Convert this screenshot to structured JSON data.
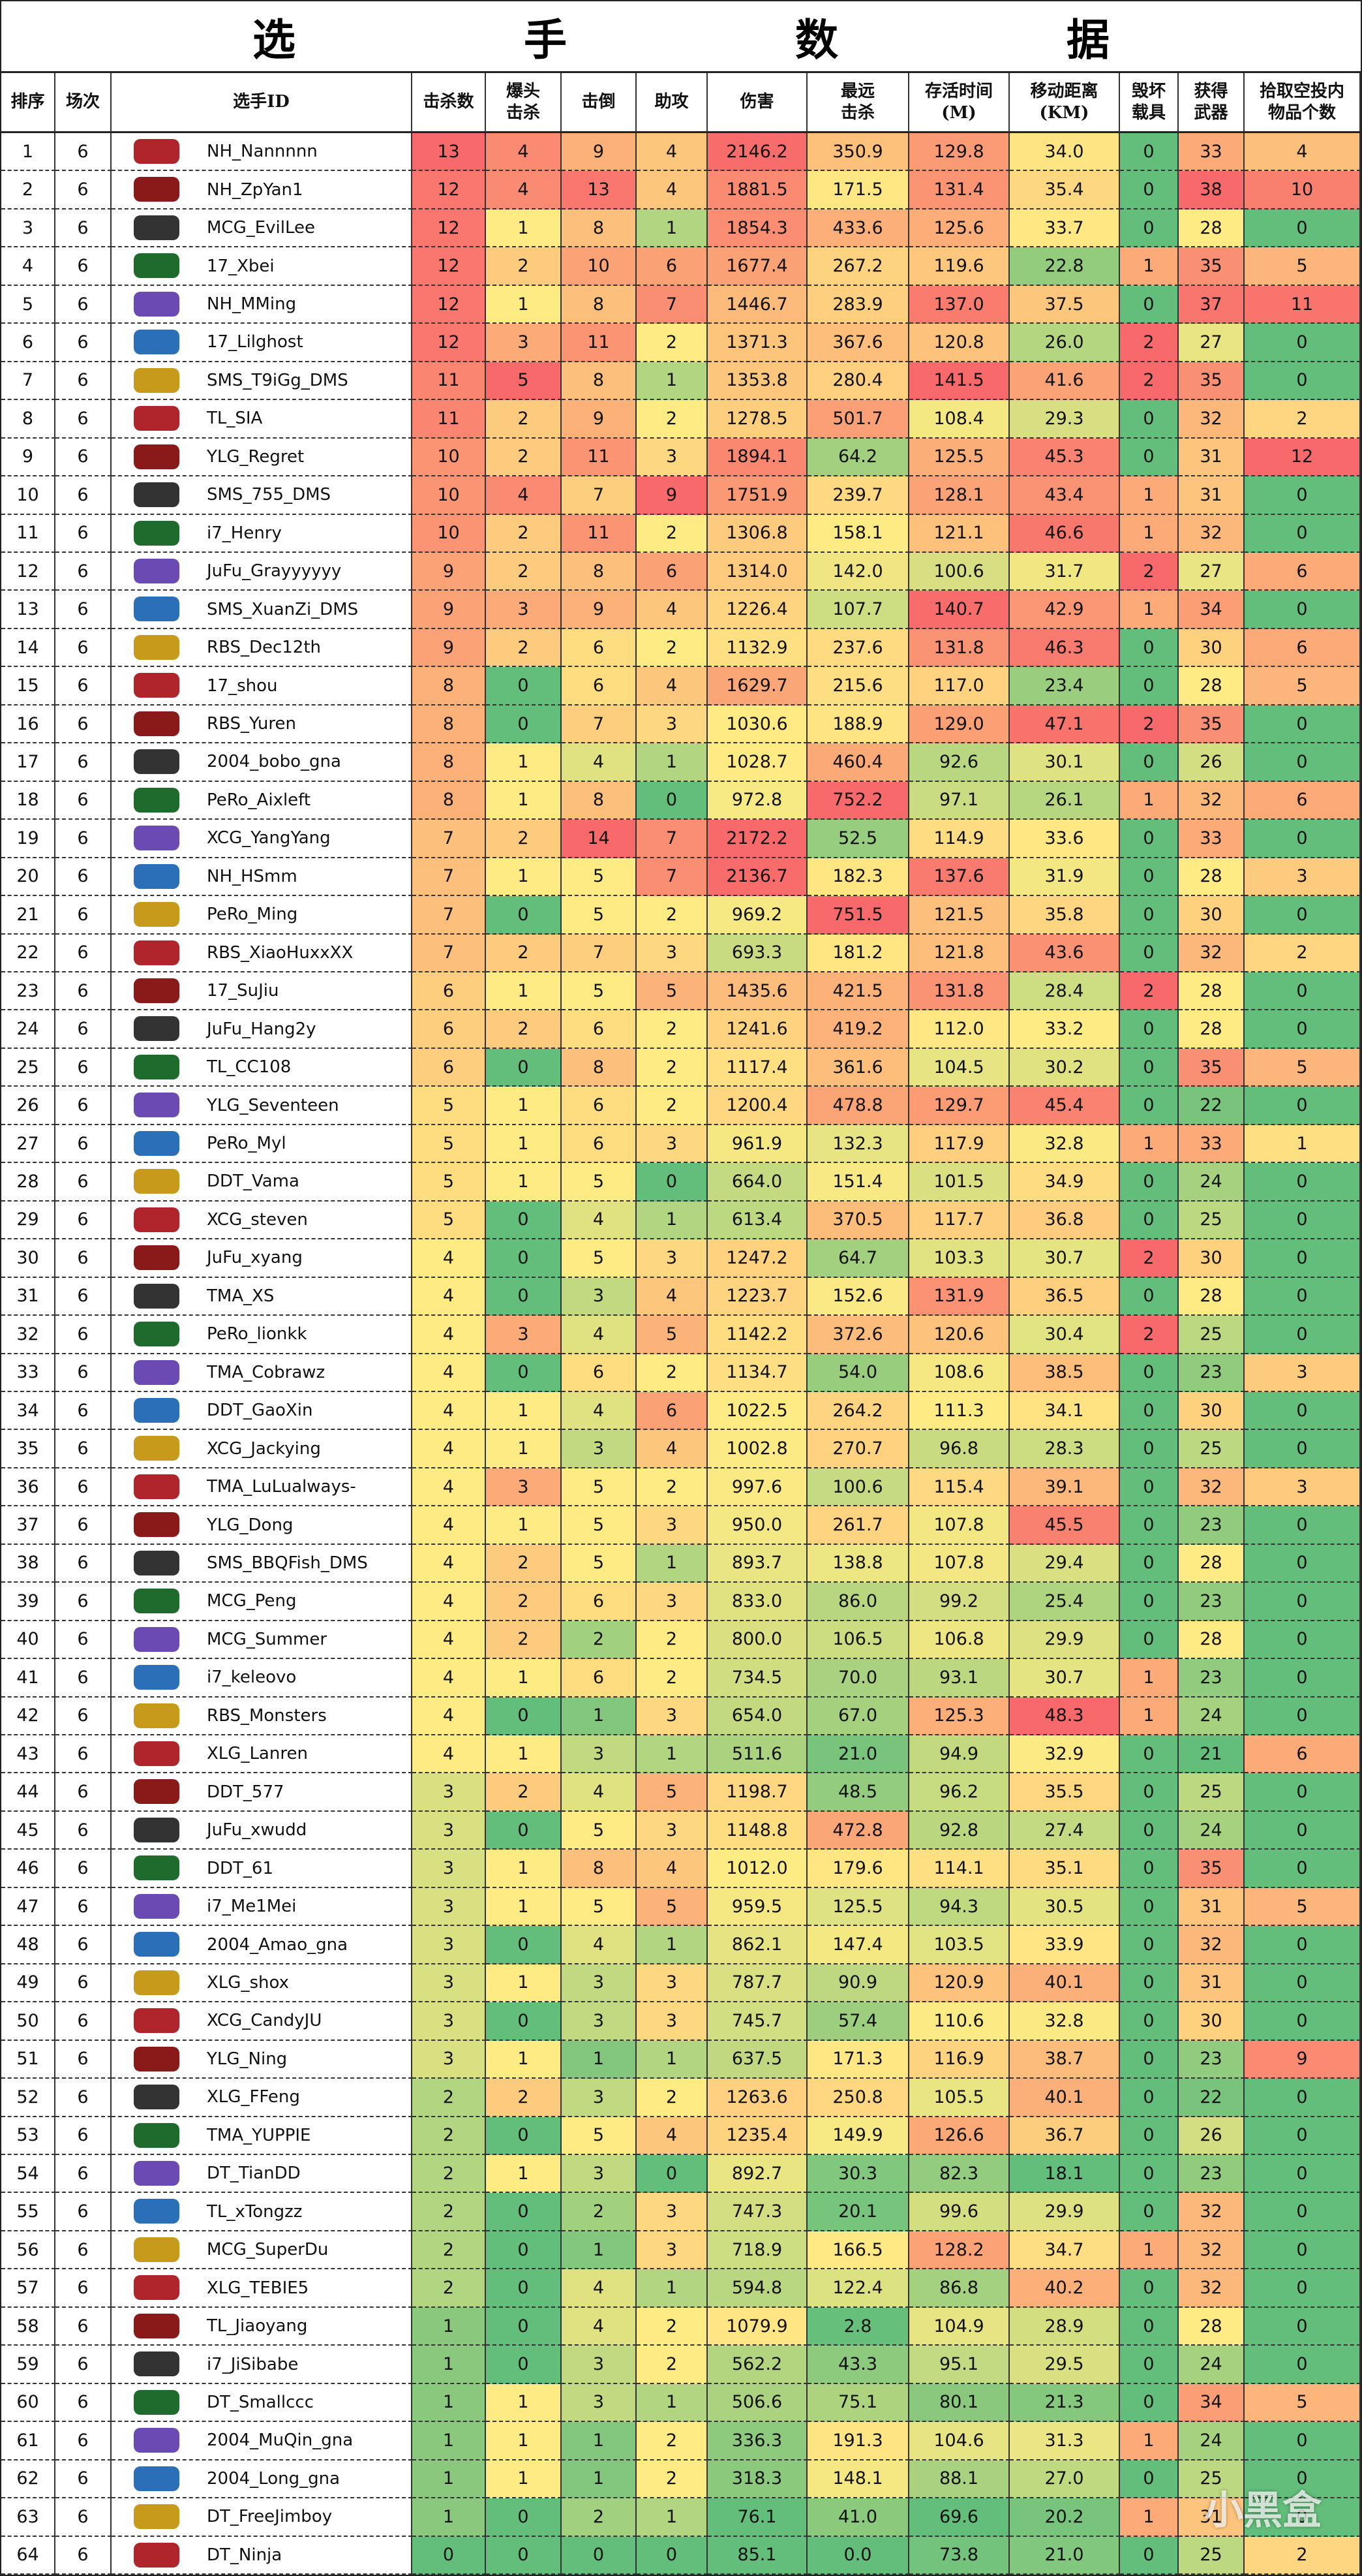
{
  "title": "选手数据",
  "watermark": "小黑盒",
  "table": {
    "headers": [
      [
        "排序"
      ],
      [
        "场次"
      ],
      [
        "选手ID"
      ],
      [
        "击杀数"
      ],
      [
        "爆头",
        "击杀"
      ],
      [
        "击倒"
      ],
      [
        "助攻"
      ],
      [
        "伤害"
      ],
      [
        "最远",
        "击杀"
      ],
      [
        "存活时间",
        "(M)"
      ],
      [
        "移动距离",
        "(KM)"
      ],
      [
        "毁坏",
        "载具"
      ],
      [
        "获得",
        "武器"
      ],
      [
        "拾取空投内",
        "物品个数"
      ]
    ],
    "rows": [
      [
        1,
        6,
        "NH_Nannnnn",
        13,
        4,
        9,
        4,
        "2146.2",
        "350.9",
        "129.8",
        "34.0",
        0,
        33,
        4
      ],
      [
        2,
        6,
        "NH_ZpYan1",
        12,
        4,
        13,
        4,
        "1881.5",
        "171.5",
        "131.4",
        "35.4",
        0,
        38,
        10
      ],
      [
        3,
        6,
        "MCG_EvilLee",
        12,
        1,
        8,
        1,
        "1854.3",
        "433.6",
        "125.6",
        "33.7",
        0,
        28,
        0
      ],
      [
        4,
        6,
        "17_Xbei",
        12,
        2,
        10,
        6,
        "1677.4",
        "267.2",
        "119.6",
        "22.8",
        1,
        35,
        5
      ],
      [
        5,
        6,
        "NH_MMing",
        12,
        1,
        8,
        7,
        "1446.7",
        "283.9",
        "137.0",
        "37.5",
        0,
        37,
        11
      ],
      [
        6,
        6,
        "17_Lilghost",
        12,
        3,
        11,
        2,
        "1371.3",
        "367.6",
        "120.8",
        "26.0",
        2,
        27,
        0
      ],
      [
        7,
        6,
        "SMS_T9iGg_DMS",
        11,
        5,
        8,
        1,
        "1353.8",
        "280.4",
        "141.5",
        "41.6",
        2,
        35,
        0
      ],
      [
        8,
        6,
        "TL_SIA",
        11,
        2,
        9,
        2,
        "1278.5",
        "501.7",
        "108.4",
        "29.3",
        0,
        32,
        2
      ],
      [
        9,
        6,
        "YLG_Regret",
        10,
        2,
        11,
        3,
        "1894.1",
        "64.2",
        "125.5",
        "45.3",
        0,
        31,
        12
      ],
      [
        10,
        6,
        "SMS_755_DMS",
        10,
        4,
        7,
        9,
        "1751.9",
        "239.7",
        "128.1",
        "43.4",
        1,
        31,
        0
      ],
      [
        11,
        6,
        "i7_Henry",
        10,
        2,
        11,
        2,
        "1306.8",
        "158.1",
        "121.1",
        "46.6",
        1,
        32,
        0
      ],
      [
        12,
        6,
        "JuFu_Grayyyyyy",
        9,
        2,
        8,
        6,
        "1314.0",
        "142.0",
        "100.6",
        "31.7",
        2,
        27,
        6
      ],
      [
        13,
        6,
        "SMS_XuanZi_DMS",
        9,
        3,
        9,
        4,
        "1226.4",
        "107.7",
        "140.7",
        "42.9",
        1,
        34,
        0
      ],
      [
        14,
        6,
        "RBS_Dec12th",
        9,
        2,
        6,
        2,
        "1132.9",
        "237.6",
        "131.8",
        "46.3",
        0,
        30,
        6
      ],
      [
        15,
        6,
        "17_shou",
        8,
        0,
        6,
        4,
        "1629.7",
        "215.6",
        "117.0",
        "23.4",
        0,
        28,
        5
      ],
      [
        16,
        6,
        "RBS_Yuren",
        8,
        0,
        7,
        3,
        "1030.6",
        "188.9",
        "129.0",
        "47.1",
        2,
        35,
        0
      ],
      [
        17,
        6,
        "2004_bobo_gna",
        8,
        1,
        4,
        1,
        "1028.7",
        "460.4",
        "92.6",
        "30.1",
        0,
        26,
        0
      ],
      [
        18,
        6,
        "PeRo_Aixleft",
        8,
        1,
        8,
        0,
        "972.8",
        "752.2",
        "97.1",
        "26.1",
        1,
        32,
        6
      ],
      [
        19,
        6,
        "XCG_YangYang",
        7,
        2,
        14,
        7,
        "2172.2",
        "52.5",
        "114.9",
        "33.6",
        0,
        33,
        0
      ],
      [
        20,
        6,
        "NH_HSmm",
        7,
        1,
        5,
        7,
        "2136.7",
        "182.3",
        "137.6",
        "31.9",
        0,
        28,
        3
      ],
      [
        21,
        6,
        "PeRo_Ming",
        7,
        0,
        5,
        2,
        "969.2",
        "751.5",
        "121.5",
        "35.8",
        0,
        30,
        0
      ],
      [
        22,
        6,
        "RBS_XiaoHuxxXX",
        7,
        2,
        7,
        3,
        "693.3",
        "181.2",
        "121.8",
        "43.6",
        0,
        32,
        2
      ],
      [
        23,
        6,
        "17_SuJiu",
        6,
        1,
        5,
        5,
        "1435.6",
        "421.5",
        "131.8",
        "28.4",
        2,
        28,
        0
      ],
      [
        24,
        6,
        "JuFu_Hang2y",
        6,
        2,
        6,
        2,
        "1241.6",
        "419.2",
        "112.0",
        "33.2",
        0,
        28,
        0
      ],
      [
        25,
        6,
        "TL_CC108",
        6,
        0,
        8,
        2,
        "1117.4",
        "361.6",
        "104.5",
        "30.2",
        0,
        35,
        5
      ],
      [
        26,
        6,
        "YLG_Seventeen",
        5,
        1,
        6,
        2,
        "1200.4",
        "478.8",
        "129.7",
        "45.4",
        0,
        22,
        0
      ],
      [
        27,
        6,
        "PeRo_Myl",
        5,
        1,
        6,
        3,
        "961.9",
        "132.3",
        "117.9",
        "32.8",
        1,
        33,
        1
      ],
      [
        28,
        6,
        "DDT_Vama",
        5,
        1,
        5,
        0,
        "664.0",
        "151.4",
        "101.5",
        "34.9",
        0,
        24,
        0
      ],
      [
        29,
        6,
        "XCG_steven",
        5,
        0,
        4,
        1,
        "613.4",
        "370.5",
        "117.7",
        "36.8",
        0,
        25,
        0
      ],
      [
        30,
        6,
        "JuFu_xyang",
        4,
        0,
        5,
        3,
        "1247.2",
        "64.7",
        "103.3",
        "30.7",
        2,
        30,
        0
      ],
      [
        31,
        6,
        "TMA_XS",
        4,
        0,
        3,
        4,
        "1223.7",
        "152.6",
        "131.9",
        "36.5",
        0,
        28,
        0
      ],
      [
        32,
        6,
        "PeRo_lionkk",
        4,
        3,
        4,
        5,
        "1142.2",
        "372.6",
        "120.6",
        "30.4",
        2,
        25,
        0
      ],
      [
        33,
        6,
        "TMA_Cobrawz",
        4,
        0,
        6,
        2,
        "1134.7",
        "54.0",
        "108.6",
        "38.5",
        0,
        23,
        3
      ],
      [
        34,
        6,
        "DDT_GaoXin",
        4,
        1,
        4,
        6,
        "1022.5",
        "264.2",
        "111.3",
        "34.1",
        0,
        30,
        0
      ],
      [
        35,
        6,
        "XCG_Jackying",
        4,
        1,
        3,
        4,
        "1002.8",
        "270.7",
        "96.8",
        "28.3",
        0,
        25,
        0
      ],
      [
        36,
        6,
        "TMA_LuLualways-",
        4,
        3,
        5,
        2,
        "997.6",
        "100.6",
        "115.4",
        "39.1",
        0,
        32,
        3
      ],
      [
        37,
        6,
        "YLG_Dong",
        4,
        1,
        5,
        3,
        "950.0",
        "261.7",
        "107.8",
        "45.5",
        0,
        23,
        0
      ],
      [
        38,
        6,
        "SMS_BBQFish_DMS",
        4,
        2,
        5,
        1,
        "893.7",
        "138.8",
        "107.8",
        "29.4",
        0,
        28,
        0
      ],
      [
        39,
        6,
        "MCG_Peng",
        4,
        2,
        6,
        3,
        "833.0",
        "86.0",
        "99.2",
        "25.4",
        0,
        23,
        0
      ],
      [
        40,
        6,
        "MCG_Summer",
        4,
        2,
        2,
        2,
        "800.0",
        "106.5",
        "106.8",
        "29.9",
        0,
        28,
        0
      ],
      [
        41,
        6,
        "i7_keleovo",
        4,
        1,
        6,
        2,
        "734.5",
        "70.0",
        "93.1",
        "30.7",
        1,
        23,
        0
      ],
      [
        42,
        6,
        "RBS_Monsters",
        4,
        0,
        1,
        3,
        "654.0",
        "67.0",
        "125.3",
        "48.3",
        1,
        24,
        0
      ],
      [
        43,
        6,
        "XLG_Lanren",
        4,
        1,
        3,
        1,
        "511.6",
        "21.0",
        "94.9",
        "32.9",
        0,
        21,
        6
      ],
      [
        44,
        6,
        "DDT_577",
        3,
        2,
        4,
        5,
        "1198.7",
        "48.5",
        "96.2",
        "35.5",
        0,
        25,
        0
      ],
      [
        45,
        6,
        "JuFu_xwudd",
        3,
        0,
        5,
        3,
        "1148.8",
        "472.8",
        "92.8",
        "27.4",
        0,
        24,
        0
      ],
      [
        46,
        6,
        "DDT_61",
        3,
        1,
        8,
        4,
        "1012.0",
        "179.6",
        "114.1",
        "35.1",
        0,
        35,
        0
      ],
      [
        47,
        6,
        "i7_Me1Mei",
        3,
        1,
        5,
        5,
        "959.5",
        "125.5",
        "94.3",
        "30.5",
        0,
        31,
        5
      ],
      [
        48,
        6,
        "2004_Amao_gna",
        3,
        0,
        4,
        1,
        "862.1",
        "147.4",
        "103.5",
        "33.9",
        0,
        32,
        0
      ],
      [
        49,
        6,
        "XLG_shox",
        3,
        1,
        3,
        3,
        "787.7",
        "90.9",
        "120.9",
        "40.1",
        0,
        31,
        0
      ],
      [
        50,
        6,
        "XCG_CandyJU",
        3,
        0,
        3,
        3,
        "745.7",
        "57.4",
        "110.6",
        "32.8",
        0,
        30,
        0
      ],
      [
        51,
        6,
        "YLG_Ning",
        3,
        1,
        1,
        1,
        "637.5",
        "171.3",
        "116.9",
        "38.7",
        0,
        23,
        9
      ],
      [
        52,
        6,
        "XLG_FFeng",
        2,
        2,
        3,
        2,
        "1263.6",
        "250.8",
        "105.5",
        "40.1",
        0,
        22,
        0
      ],
      [
        53,
        6,
        "TMA_YUPPIE",
        2,
        0,
        5,
        4,
        "1235.4",
        "149.9",
        "126.6",
        "36.7",
        0,
        26,
        0
      ],
      [
        54,
        6,
        "DT_TianDD",
        2,
        1,
        3,
        0,
        "892.7",
        "30.3",
        "82.3",
        "18.1",
        0,
        23,
        0
      ],
      [
        55,
        6,
        "TL_xTongzz",
        2,
        0,
        2,
        3,
        "747.3",
        "20.1",
        "99.6",
        "29.9",
        0,
        32,
        0
      ],
      [
        56,
        6,
        "MCG_SuperDu",
        2,
        0,
        1,
        3,
        "718.9",
        "166.5",
        "128.2",
        "34.7",
        1,
        32,
        0
      ],
      [
        57,
        6,
        "XLG_TEBIE5",
        2,
        0,
        4,
        1,
        "594.8",
        "122.4",
        "86.8",
        "40.2",
        0,
        32,
        0
      ],
      [
        58,
        6,
        "TL_Jiaoyang",
        1,
        0,
        4,
        2,
        "1079.9",
        "2.8",
        "104.9",
        "28.9",
        0,
        28,
        0
      ],
      [
        59,
        6,
        "i7_JiSibabe",
        1,
        0,
        3,
        2,
        "562.2",
        "43.3",
        "95.1",
        "29.5",
        0,
        24,
        0
      ],
      [
        60,
        6,
        "DT_Smallccc",
        1,
        1,
        3,
        1,
        "506.6",
        "75.1",
        "80.1",
        "21.3",
        0,
        34,
        5
      ],
      [
        61,
        6,
        "2004_MuQin_gna",
        1,
        1,
        1,
        2,
        "336.3",
        "191.3",
        "104.6",
        "31.3",
        1,
        24,
        0
      ],
      [
        62,
        6,
        "2004_Long_gna",
        1,
        1,
        1,
        2,
        "318.3",
        "148.1",
        "88.1",
        "27.0",
        0,
        25,
        0
      ],
      [
        63,
        6,
        "DT_FreeJimboy",
        1,
        0,
        2,
        1,
        "76.1",
        "41.0",
        "69.6",
        "20.2",
        1,
        31,
        0
      ],
      [
        64,
        6,
        "DT_Ninja",
        0,
        0,
        0,
        0,
        "85.1",
        "0.0",
        "73.8",
        "21.0",
        0,
        25,
        2
      ]
    ]
  }
}
